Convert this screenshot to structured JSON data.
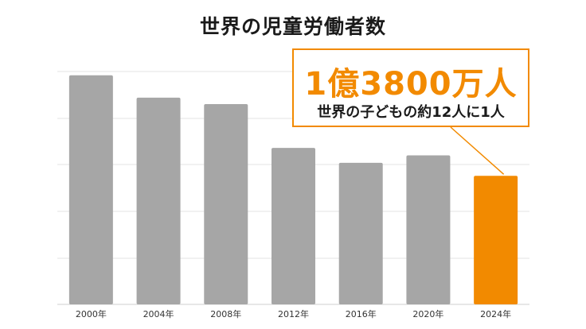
{
  "title": "世界の児童労働者数",
  "callout": {
    "headline": "1億3800万人",
    "subtext": "世界の子どもの約12人に1人"
  },
  "colors": {
    "bar": "#a6a6a6",
    "highlight": "#f28a00",
    "grid": "#e3e3e3",
    "text": "#1a1a1a"
  },
  "chart_data": {
    "type": "bar",
    "title": "世界の児童労働者数",
    "categories": [
      "2000年",
      "2004年",
      "2008年",
      "2012年",
      "2016年",
      "2020年",
      "2024年"
    ],
    "values": [
      246,
      222,
      215,
      168,
      152,
      160,
      138
    ],
    "unit": "百万人",
    "highlight_index": 6,
    "ylim": [
      0,
      250
    ],
    "grid": true,
    "xlabel": "",
    "ylabel": ""
  }
}
